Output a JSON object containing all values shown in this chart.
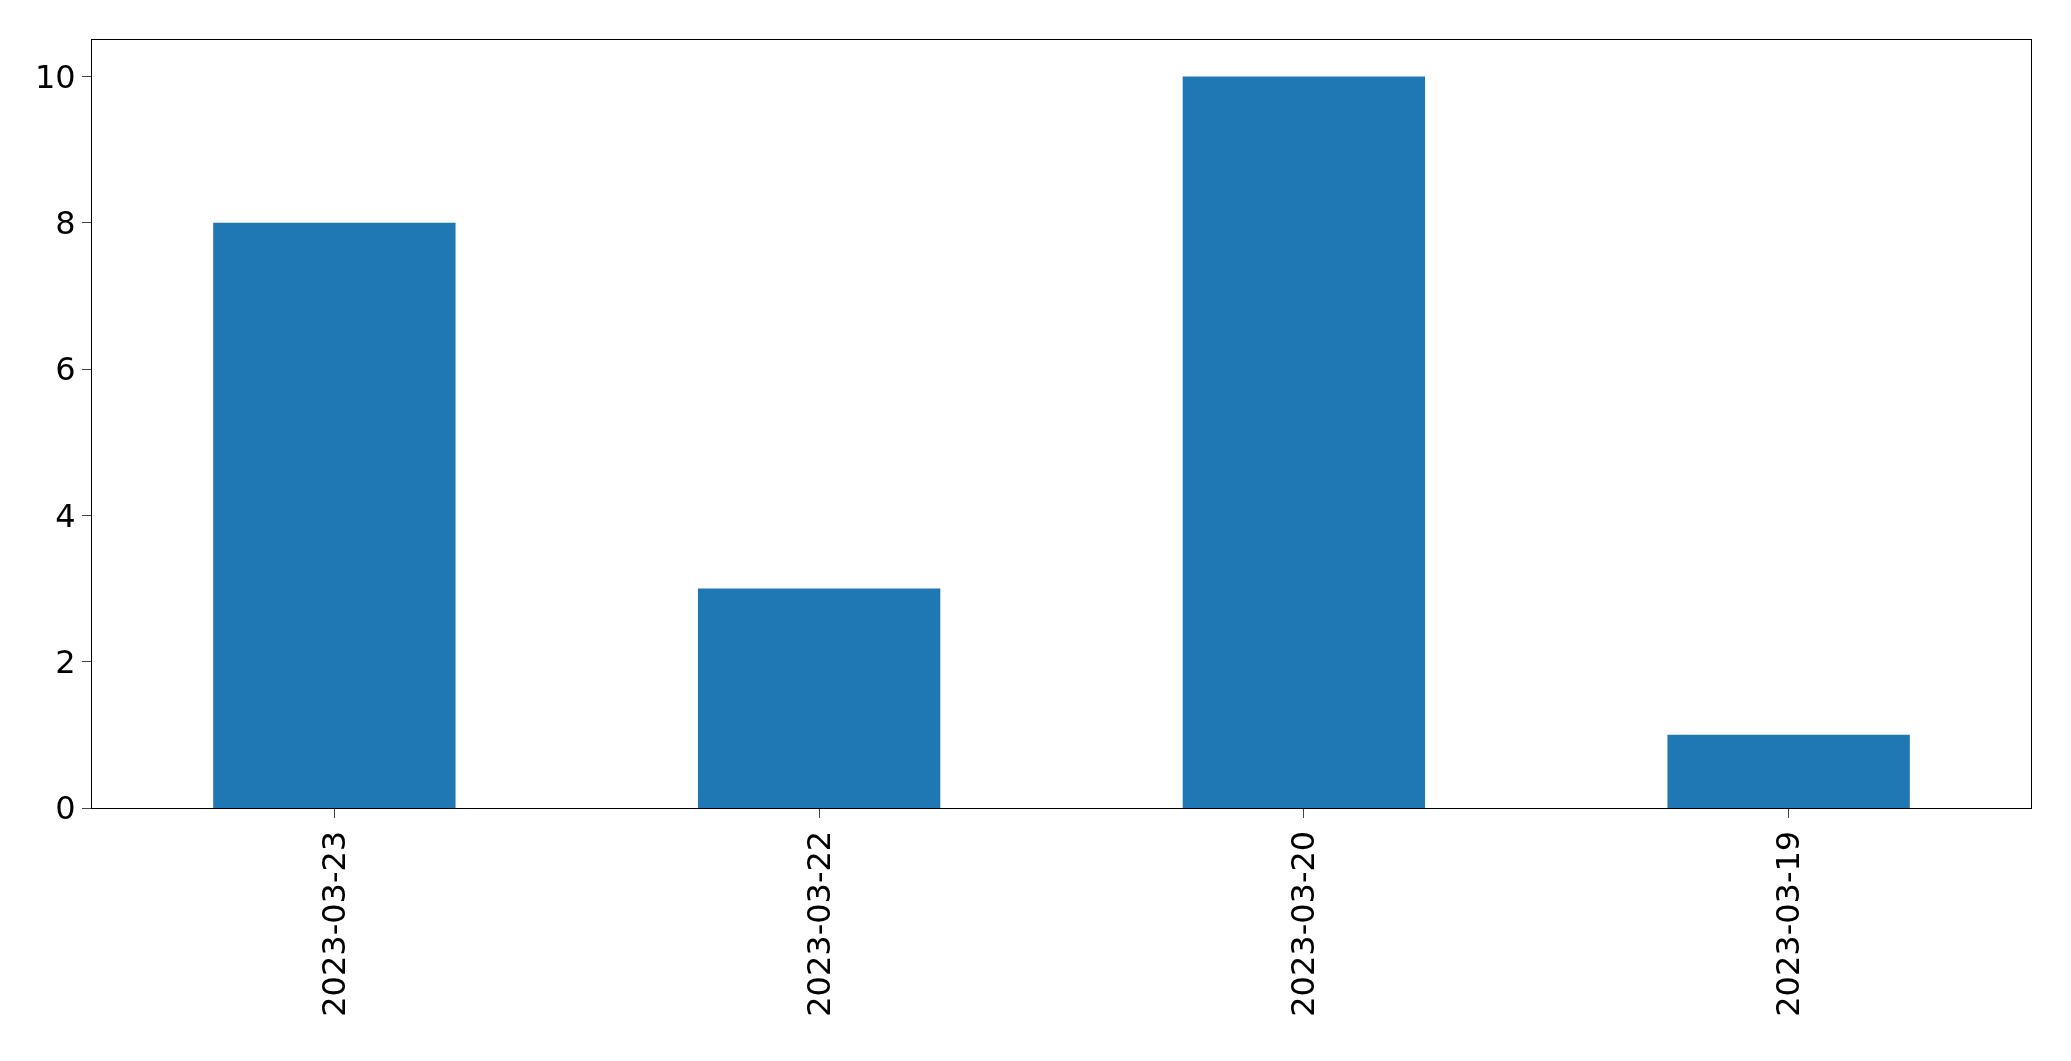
{
  "chart_data": {
    "type": "bar",
    "categories": [
      "2023-03-23",
      "2023-03-22",
      "2023-03-20",
      "2023-03-19"
    ],
    "values": [
      8,
      3,
      10,
      1
    ],
    "color": "#1f77b4",
    "ylim": [
      0,
      10.5
    ],
    "yticks": [
      0,
      2,
      4,
      6,
      8,
      10
    ]
  }
}
